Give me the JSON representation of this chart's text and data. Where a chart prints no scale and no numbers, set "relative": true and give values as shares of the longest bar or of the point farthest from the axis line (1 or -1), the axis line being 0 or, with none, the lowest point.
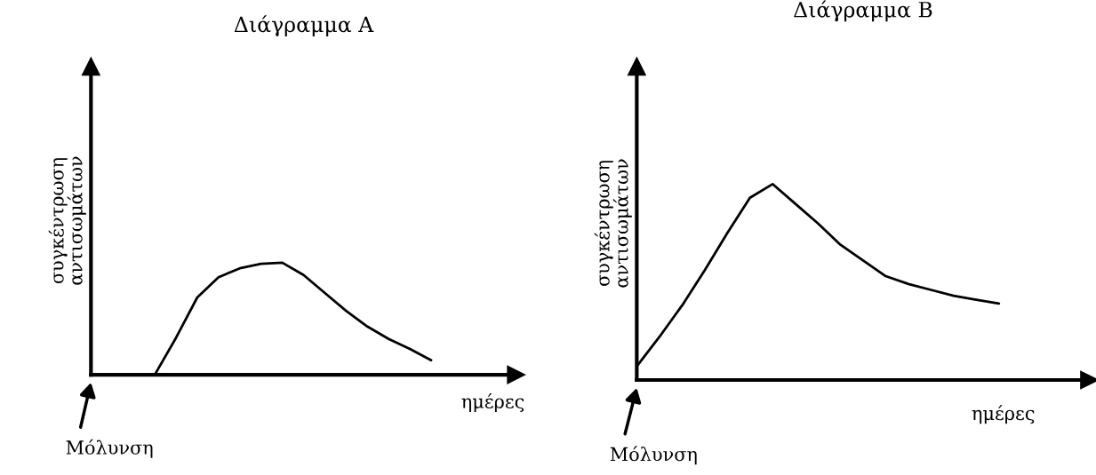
{
  "chart_data": [
    {
      "type": "line",
      "title": "Διάγραμμα Α",
      "xlabel": "ημέρες",
      "ylabel": "συγκέντρωση\nαντισωμάτων",
      "relative": true,
      "categories": [
        null,
        null,
        null,
        null,
        null,
        null,
        null,
        null,
        null,
        null,
        null,
        null,
        null,
        null,
        null,
        null,
        null,
        null,
        null,
        null,
        null
      ],
      "series": [
        {
          "color": "#000000",
          "values": [
            0,
            0,
            0,
            0,
            0.33,
            0.69,
            0.87,
            0.95,
            0.99,
            1,
            0.89,
            0.73,
            0.57,
            0.43,
            0.32,
            0.23,
            0.13,
            null,
            null,
            null,
            null
          ]
        }
      ],
      "annotations": [
        "Μόλυνση"
      ]
    },
    {
      "type": "line",
      "title": "Διάγραμμα Β",
      "xlabel": "ημέρες",
      "ylabel": "συγκέντρωση\nαντισωμάτων",
      "relative": true,
      "categories": [
        null,
        null,
        null,
        null,
        null,
        null,
        null,
        null,
        null,
        null,
        null,
        null,
        null,
        null,
        null,
        null,
        null,
        null,
        null,
        null,
        null
      ],
      "series": [
        {
          "color": "#000000",
          "values": [
            0.07,
            0.22,
            0.38,
            0.56,
            0.75,
            0.93,
            1,
            0.9,
            0.8,
            0.69,
            0.61,
            0.53,
            0.49,
            0.46,
            0.43,
            0.41,
            0.39,
            null,
            null,
            null,
            null
          ]
        }
      ],
      "annotations": [
        "Μόλυνση"
      ]
    }
  ]
}
